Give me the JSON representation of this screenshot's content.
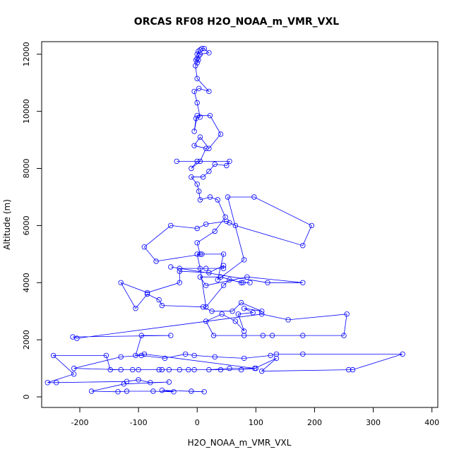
{
  "chart_data": {
    "type": "line",
    "title": "ORCAS RF08 H2O_NOAA_m_VMR_VXL",
    "xlabel": "H2O_NOAA_m_VMR_VXL",
    "ylabel": "Altitude (m)",
    "xlim": [
      -265,
      410
    ],
    "ylim": [
      -370,
      12440
    ],
    "x_ticks": [
      -200,
      -100,
      0,
      100,
      200,
      300,
      400
    ],
    "x_tick_labels": [
      "-200",
      "-100",
      "0",
      "100",
      "200",
      "300",
      "400"
    ],
    "y_ticks": [
      0,
      2000,
      4000,
      6000,
      8000,
      10000,
      12000
    ],
    "y_tick_labels": [
      "0",
      "2000",
      "4000",
      "6000",
      "8000",
      "10000",
      "12000"
    ],
    "grid": false,
    "marker": "open-circle",
    "series": [
      {
        "color": "#0000ff",
        "points": [
          [
            -10,
            200
          ],
          [
            12,
            180
          ],
          [
            -60,
            230
          ],
          [
            -40,
            180
          ],
          [
            -75,
            200
          ],
          [
            -120,
            200
          ],
          [
            -135,
            180
          ],
          [
            -180,
            200
          ],
          [
            -125,
            450
          ],
          [
            -48,
            520
          ],
          [
            -80,
            500
          ],
          [
            -100,
            600
          ],
          [
            -120,
            540
          ],
          [
            -240,
            500
          ],
          [
            -255,
            500
          ],
          [
            -210,
            800
          ],
          [
            -245,
            1450
          ],
          [
            -155,
            1450
          ],
          [
            -148,
            950
          ],
          [
            -65,
            950
          ],
          [
            -48,
            950
          ],
          [
            -30,
            950
          ],
          [
            -5,
            950
          ],
          [
            40,
            950
          ],
          [
            75,
            950
          ],
          [
            100,
            1000
          ],
          [
            55,
            1000
          ],
          [
            20,
            950
          ],
          [
            -15,
            950
          ],
          [
            -60,
            950
          ],
          [
            -100,
            950
          ],
          [
            -110,
            950
          ],
          [
            -130,
            950
          ],
          [
            -210,
            1000
          ],
          [
            -130,
            1400
          ],
          [
            -95,
            1450
          ],
          [
            -55,
            1350
          ],
          [
            -20,
            1500
          ],
          [
            -5,
            1450
          ],
          [
            30,
            1400
          ],
          [
            80,
            1350
          ],
          [
            125,
            1450
          ],
          [
            135,
            1500
          ],
          [
            180,
            1500
          ],
          [
            350,
            1500
          ],
          [
            265,
            950
          ],
          [
            258,
            950
          ],
          [
            110,
            900
          ],
          [
            135,
            1350
          ],
          [
            98,
            1000
          ],
          [
            -90,
            1500
          ],
          [
            -105,
            1450
          ],
          [
            -95,
            2150
          ],
          [
            -45,
            2150
          ],
          [
            -212,
            2100
          ],
          [
            -205,
            2050
          ],
          [
            110,
            2900
          ],
          [
            155,
            2700
          ],
          [
            255,
            2900
          ],
          [
            250,
            2150
          ],
          [
            180,
            2150
          ],
          [
            128,
            2150
          ],
          [
            112,
            2150
          ],
          [
            80,
            2150
          ],
          [
            28,
            2150
          ],
          [
            15,
            2650
          ],
          [
            42,
            2900
          ],
          [
            65,
            2650
          ],
          [
            80,
            2300
          ],
          [
            70,
            2900
          ],
          [
            95,
            2950
          ],
          [
            80,
            3100
          ],
          [
            110,
            3000
          ],
          [
            75,
            3300
          ],
          [
            60,
            3000
          ],
          [
            25,
            3000
          ],
          [
            10,
            3150
          ],
          [
            -60,
            3200
          ],
          [
            -65,
            3400
          ],
          [
            -85,
            3600
          ],
          [
            -105,
            3100
          ],
          [
            -130,
            4000
          ],
          [
            -85,
            3650
          ],
          [
            -30,
            4000
          ],
          [
            -30,
            4400
          ],
          [
            20,
            4350
          ],
          [
            45,
            4600
          ],
          [
            45,
            4500
          ],
          [
            15,
            4500
          ],
          [
            -30,
            4500
          ],
          [
            -45,
            4550
          ],
          [
            120,
            4000
          ],
          [
            180,
            4000
          ],
          [
            85,
            4200
          ],
          [
            15,
            3900
          ],
          [
            5,
            4200
          ],
          [
            40,
            4200
          ],
          [
            75,
            4000
          ],
          [
            90,
            4000
          ],
          [
            78,
            4000
          ],
          [
            55,
            4100
          ],
          [
            45,
            3900
          ],
          [
            15,
            3150
          ],
          [
            5,
            4500
          ],
          [
            0,
            5000
          ],
          [
            8,
            5000
          ],
          [
            -70,
            4750
          ],
          [
            -90,
            5250
          ],
          [
            -45,
            6000
          ],
          [
            0,
            5900
          ],
          [
            15,
            6050
          ],
          [
            50,
            6150
          ],
          [
            55,
            6100
          ],
          [
            65,
            6000
          ],
          [
            180,
            5300
          ],
          [
            195,
            6000
          ],
          [
            97,
            7000
          ],
          [
            52,
            7000
          ],
          [
            80,
            4800
          ],
          [
            35,
            4100
          ],
          [
            45,
            5000
          ],
          [
            5,
            5000
          ],
          [
            0,
            5400
          ],
          [
            30,
            5800
          ],
          [
            48,
            6300
          ],
          [
            35,
            6900
          ],
          [
            22,
            7000
          ],
          [
            5,
            6900
          ],
          [
            3,
            7200
          ],
          [
            0,
            7450
          ],
          [
            -10,
            7700
          ],
          [
            10,
            7700
          ],
          [
            20,
            7900
          ],
          [
            30,
            8150
          ],
          [
            50,
            8100
          ],
          [
            55,
            8250
          ],
          [
            -35,
            8250
          ],
          [
            0,
            8250
          ],
          [
            -10,
            8000
          ],
          [
            5,
            8250
          ],
          [
            15,
            8700
          ],
          [
            -5,
            8800
          ],
          [
            5,
            9100
          ],
          [
            20,
            8700
          ],
          [
            40,
            9200
          ],
          [
            22,
            9850
          ],
          [
            0,
            9850
          ],
          [
            -5,
            9300
          ],
          [
            -2,
            9750
          ],
          [
            5,
            9800
          ],
          [
            0,
            10300
          ],
          [
            -5,
            10700
          ],
          [
            3,
            10800
          ],
          [
            20,
            10700
          ],
          [
            0,
            11150
          ],
          [
            -3,
            11600
          ],
          [
            0,
            11700
          ],
          [
            2,
            11800
          ],
          [
            -2,
            11800
          ],
          [
            0,
            11850
          ],
          [
            3,
            11950
          ],
          [
            0,
            12000
          ],
          [
            2,
            12100
          ],
          [
            5,
            12150
          ],
          [
            8,
            12200
          ],
          [
            12,
            12200
          ],
          [
            20,
            12050
          ],
          [
            5,
            12000
          ]
        ]
      }
    ]
  }
}
